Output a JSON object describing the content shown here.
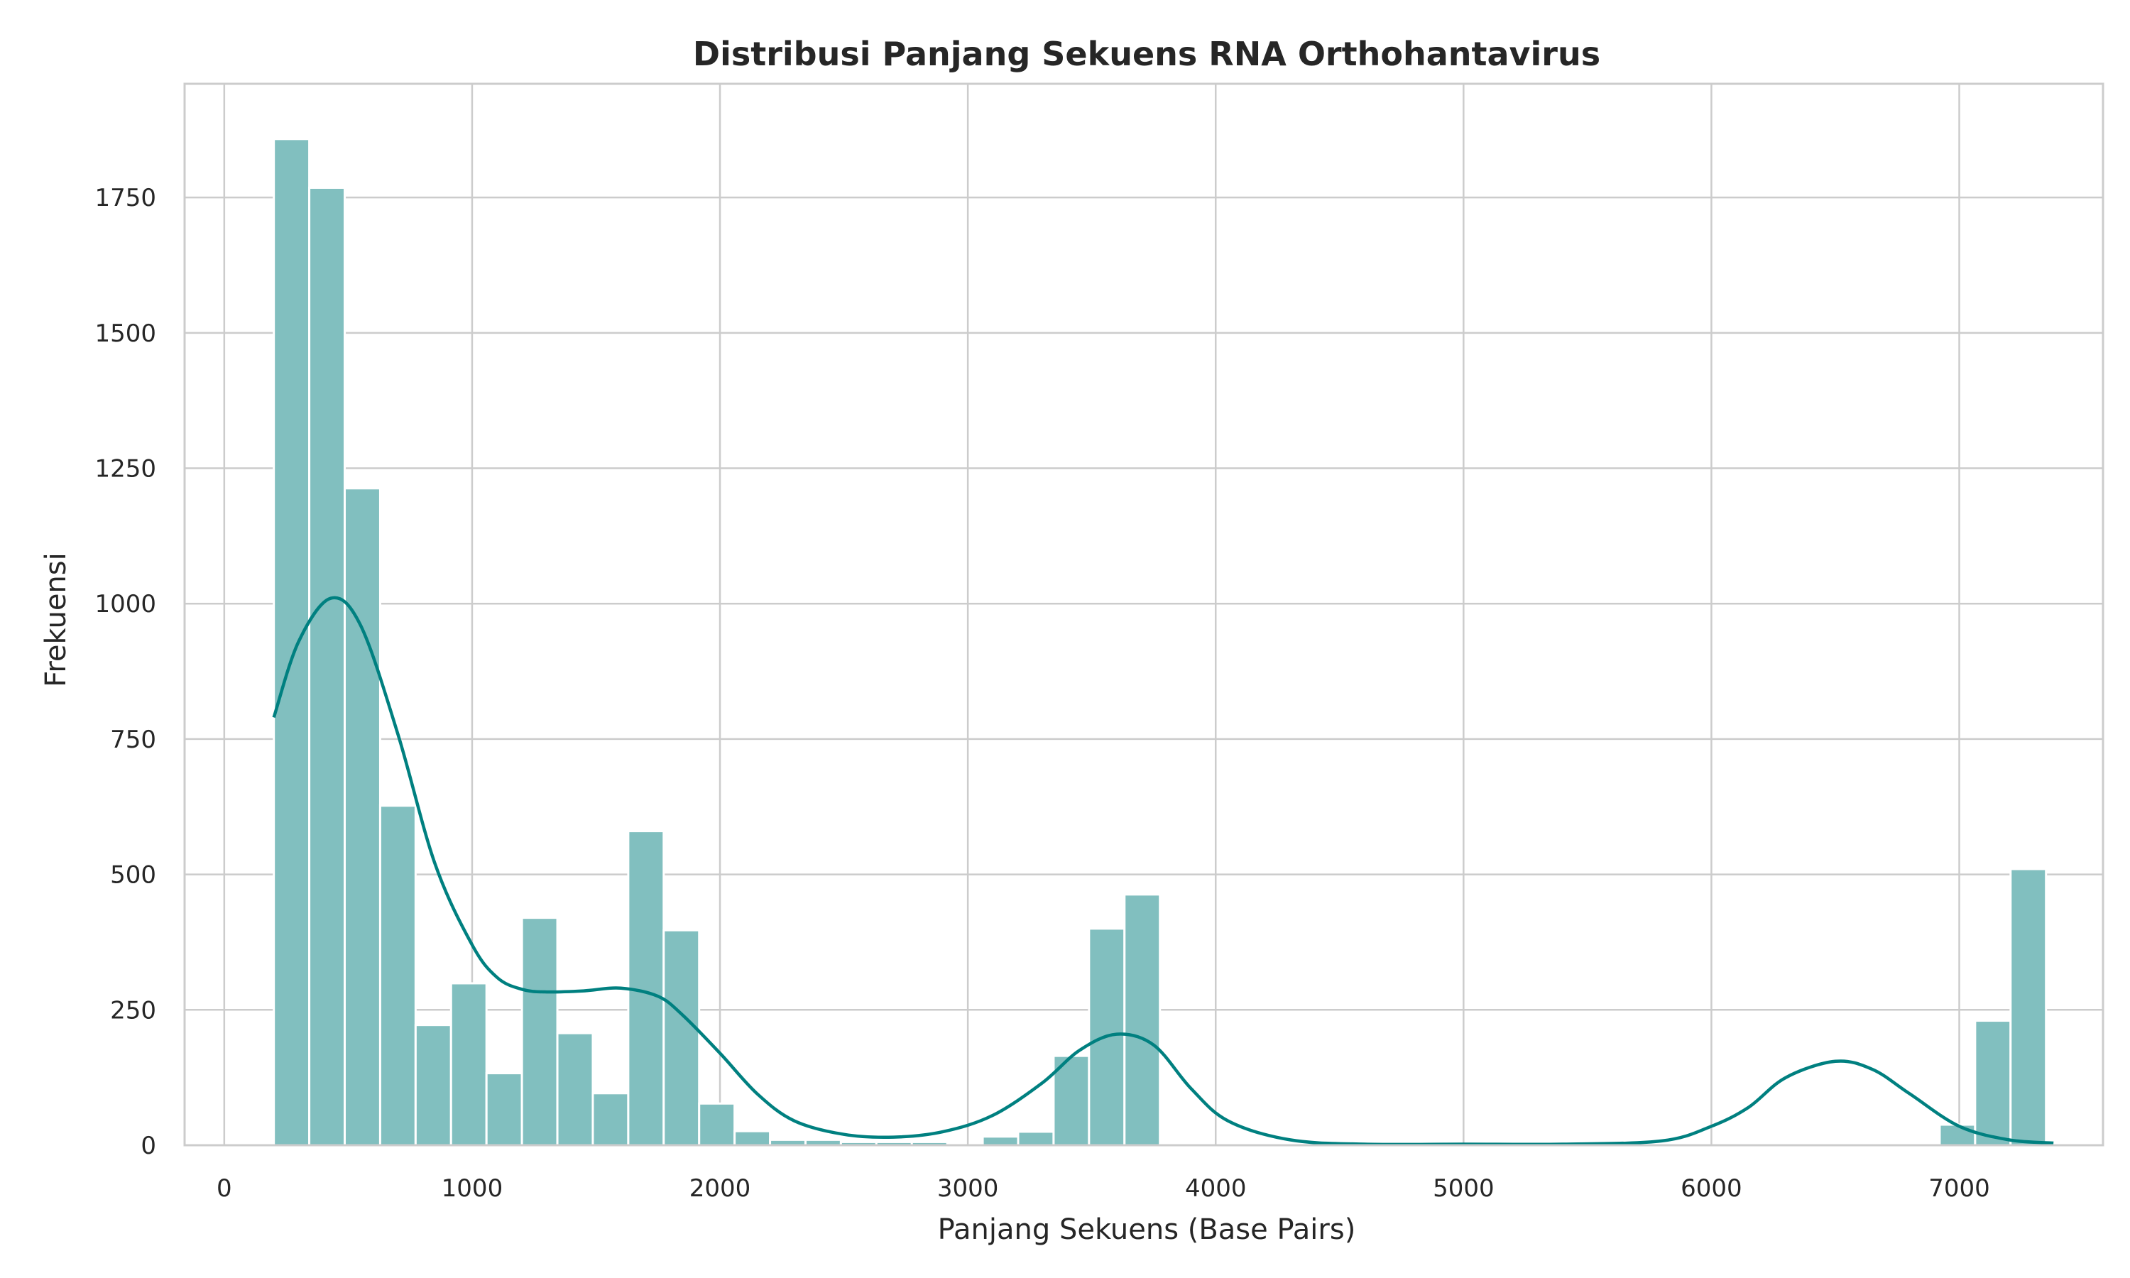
{
  "chart_data": {
    "type": "bar",
    "subtype": "histogram_with_kde",
    "title": "Distribusi Panjang Sekuens RNA Orthohantavirus",
    "xlabel": "Panjang Sekuens (Base Pairs)",
    "ylabel": "Frekuensi",
    "xlim": [
      -160,
      7580
    ],
    "ylim": [
      0,
      1960
    ],
    "xticks": [
      0,
      1000,
      2000,
      3000,
      4000,
      5000,
      6000,
      7000
    ],
    "yticks": [
      0,
      250,
      500,
      750,
      1000,
      1250,
      1500,
      1750
    ],
    "grid": true,
    "bar_color": "#81bfbf",
    "bar_edge_color": "#ffffff",
    "kde_color": "#008080",
    "bins": {
      "start": 200,
      "width": 143,
      "counts": [
        1858,
        1768,
        1213,
        627,
        222,
        299,
        133,
        420,
        207,
        96,
        580,
        397,
        77,
        26,
        10,
        10,
        6,
        6,
        6,
        0,
        16,
        25,
        165,
        400,
        463,
        0,
        0,
        0,
        0,
        0,
        0,
        0,
        0,
        0,
        0,
        0,
        0,
        0,
        0,
        0,
        0,
        0,
        0,
        0,
        0,
        0,
        0,
        38,
        230,
        510
      ]
    },
    "kde": {
      "x": [
        200,
        300,
        430,
        550,
        700,
        850,
        1000,
        1100,
        1200,
        1300,
        1450,
        1600,
        1750,
        1850,
        2000,
        2150,
        2300,
        2500,
        2700,
        2900,
        3100,
        3300,
        3450,
        3600,
        3750,
        3900,
        4050,
        4300,
        4600,
        5000,
        5400,
        5800,
        6000,
        6150,
        6300,
        6500,
        6650,
        6800,
        7000,
        7200,
        7380
      ],
      "y": [
        790,
        930,
        1010,
        960,
        760,
        520,
        370,
        310,
        288,
        283,
        285,
        290,
        275,
        240,
        170,
        95,
        45,
        20,
        15,
        25,
        55,
        115,
        175,
        205,
        185,
        105,
        45,
        10,
        2,
        2,
        2,
        8,
        35,
        70,
        125,
        155,
        140,
        95,
        35,
        10,
        4
      ]
    }
  }
}
